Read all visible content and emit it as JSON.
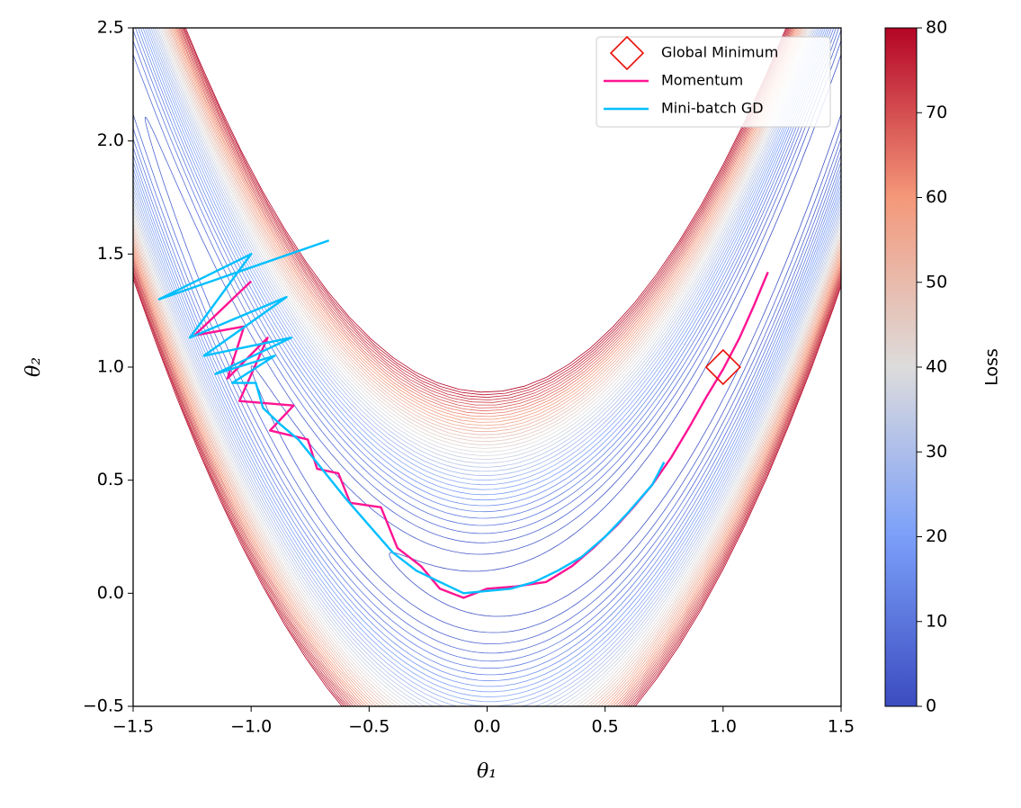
{
  "chart_data": {
    "type": "contour",
    "xlabel": "θ₁",
    "ylabel": "θ₂",
    "xlim": [
      -1.5,
      1.5
    ],
    "ylim": [
      -0.5,
      2.5
    ],
    "xticks": [
      {
        "value": -1.5,
        "label": "−1.5"
      },
      {
        "value": -1.0,
        "label": "−1.0"
      },
      {
        "value": -0.5,
        "label": "−0.5"
      },
      {
        "value": 0,
        "label": "0.0"
      },
      0.5,
      {
        "value": 1.0,
        "label": "1.0"
      },
      1.5
    ],
    "yticks": [
      {
        "value": -0.5,
        "label": "−0.5"
      },
      {
        "value": 0,
        "label": "0.0"
      },
      0.5,
      {
        "value": 1.0,
        "label": "1.0"
      },
      1.5,
      {
        "value": 2.0,
        "label": "2.0"
      },
      2.5
    ],
    "contour_levels": [
      2,
      4,
      6,
      8,
      10,
      12,
      14,
      16,
      18,
      20,
      22,
      24,
      26,
      28,
      30,
      32,
      34,
      36,
      38,
      40,
      42,
      44,
      46,
      48,
      50,
      52,
      54,
      56,
      58,
      60,
      62,
      64,
      66,
      68,
      70,
      72,
      74,
      76,
      78,
      80
    ],
    "colormap": [
      "#3b4cc0",
      "#7b9ff9",
      "#dddcdc",
      "#f4987a",
      "#b40426"
    ],
    "colorbar": {
      "label": "Loss",
      "lim": [
        0,
        80
      ],
      "ticks": [
        0,
        10,
        20,
        30,
        40,
        50,
        60,
        70,
        80
      ]
    },
    "legend": "upper right",
    "markers": [
      {
        "name": "Global Minimum",
        "color": "#e8120c",
        "x": [
          1
        ],
        "y": [
          1
        ]
      }
    ],
    "series": [
      {
        "name": "Momentum",
        "color": "#ff1493",
        "x": [
          -1.0,
          -1.24,
          -1.03,
          -1.1,
          -0.93,
          -1.05,
          -0.82,
          -0.92,
          -0.76,
          -0.72,
          -0.63,
          -0.58,
          -0.45,
          -0.38,
          -0.28,
          -0.2,
          -0.1,
          0.0,
          0.12,
          0.25,
          0.36,
          0.45,
          0.55,
          0.62,
          0.7,
          0.78,
          0.86,
          0.93,
          1.0,
          1.07,
          1.13,
          1.19
        ],
        "y": [
          1.38,
          1.14,
          1.18,
          0.95,
          1.13,
          0.85,
          0.83,
          0.72,
          0.68,
          0.55,
          0.53,
          0.4,
          0.38,
          0.2,
          0.12,
          0.02,
          -0.02,
          0.02,
          0.03,
          0.05,
          0.12,
          0.2,
          0.3,
          0.38,
          0.48,
          0.6,
          0.74,
          0.87,
          0.99,
          1.13,
          1.27,
          1.42
        ]
      },
      {
        "name": "Mini-batch GD",
        "color": "#00bfff",
        "x": [
          -0.67,
          -1.39,
          -1.0,
          -1.26,
          -0.85,
          -1.2,
          -0.83,
          -1.15,
          -0.9,
          -1.08,
          -0.98,
          -0.95,
          -0.88,
          -0.8,
          -0.7,
          -0.6,
          -0.5,
          -0.4,
          -0.3,
          -0.2,
          -0.1,
          0.0,
          0.1,
          0.2,
          0.3,
          0.4,
          0.5,
          0.6,
          0.7,
          0.75
        ],
        "y": [
          1.56,
          1.3,
          1.5,
          1.13,
          1.31,
          1.05,
          1.13,
          0.97,
          1.05,
          0.93,
          0.93,
          0.82,
          0.75,
          0.68,
          0.55,
          0.42,
          0.3,
          0.18,
          0.1,
          0.05,
          0.0,
          0.01,
          0.02,
          0.05,
          0.1,
          0.16,
          0.25,
          0.36,
          0.48,
          0.58
        ]
      }
    ]
  }
}
